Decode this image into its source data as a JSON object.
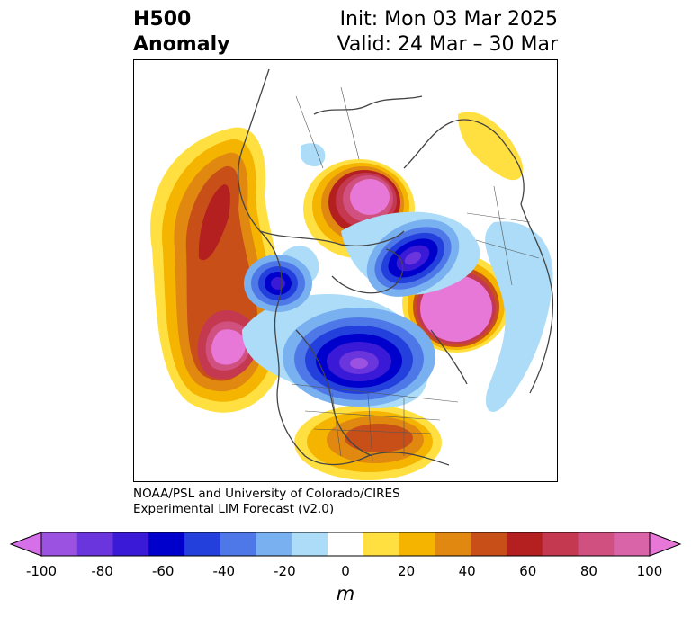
{
  "title": {
    "left_line1": "H500",
    "left_line2": "Anomaly",
    "right_line1": "Init: Mon 03 Mar 2025",
    "right_line2": "Valid: 24 Mar – 30 Mar"
  },
  "credit": {
    "line1": "NOAA/PSL and University of Colorado/CIRES",
    "line2": "Experimental LIM Forecast (v2.0)"
  },
  "colorbar": {
    "unit": "m",
    "ticks": [
      "-100",
      "-80",
      "-60",
      "-40",
      "-20",
      "0",
      "20",
      "40",
      "60",
      "80",
      "100"
    ],
    "colors": [
      "#d670e8",
      "#9b52e0",
      "#6a35dc",
      "#3a1ad6",
      "#0000cc",
      "#2340dc",
      "#4e78e8",
      "#78b0f0",
      "#acdcf8",
      "#ffffff",
      "#ffe040",
      "#f4b400",
      "#e08810",
      "#c85018",
      "#b42020",
      "#c43850",
      "#d05080",
      "#da64a8",
      "#e878d8"
    ]
  },
  "legend_colors": {
    "positive_strong": "#e878d8",
    "negative_strong": "#0000cc",
    "coast": "#444444"
  }
}
